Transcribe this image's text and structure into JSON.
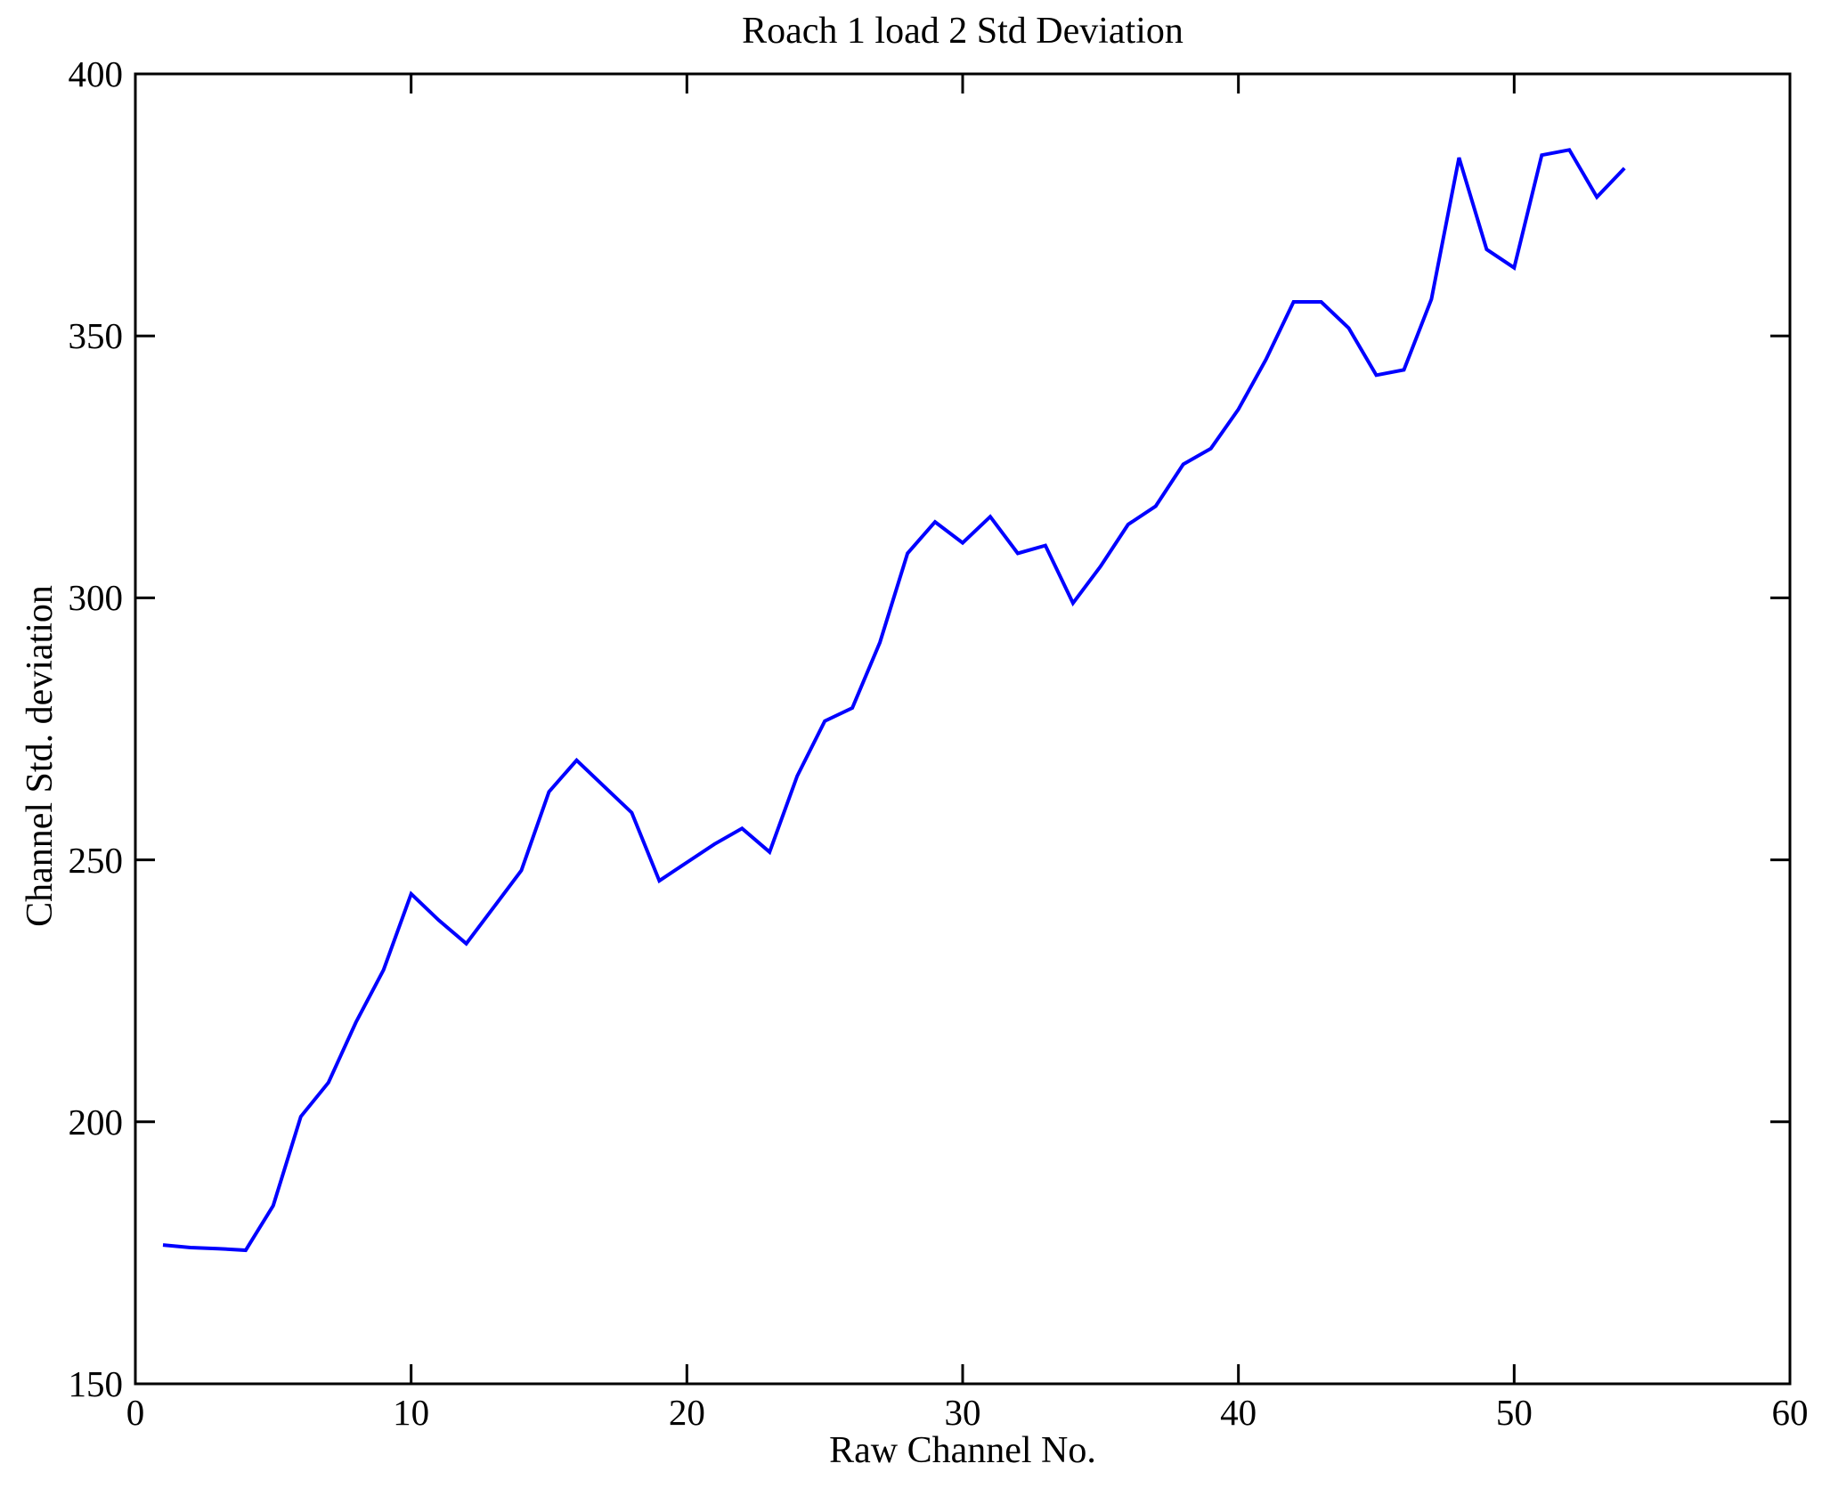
{
  "chart_data": {
    "type": "line",
    "title": "Roach 1 load 2 Std Deviation",
    "xlabel": "Raw Channel No.",
    "ylabel": "Channel Std. deviation",
    "x": [
      1,
      2,
      3,
      4,
      5,
      6,
      7,
      8,
      9,
      10,
      11,
      12,
      13,
      14,
      15,
      16,
      17,
      18,
      19,
      20,
      21,
      22,
      23,
      24,
      25,
      26,
      27,
      28,
      29,
      30,
      31,
      32,
      33,
      34,
      35,
      36,
      37,
      38,
      39,
      40,
      41,
      42,
      43,
      44,
      45,
      46,
      47,
      48,
      49,
      50,
      51,
      52,
      53,
      54
    ],
    "values": [
      176.5,
      176,
      175.8,
      175.5,
      184,
      201,
      207.5,
      219,
      229,
      243.5,
      238.5,
      234,
      241,
      248,
      263,
      269,
      264,
      259,
      246,
      249.5,
      253,
      256,
      251.5,
      266,
      276.5,
      279,
      291.5,
      308.5,
      314.5,
      310.5,
      315.5,
      308.5,
      310,
      299,
      306,
      314,
      317.5,
      325.5,
      328.5,
      336,
      345.5,
      356.5,
      356.5,
      351.5,
      342.5,
      343.5,
      357,
      384,
      366.5,
      363,
      384.5,
      385.5,
      376.5,
      382
    ],
    "xlim": [
      0,
      60
    ],
    "ylim": [
      150,
      400
    ],
    "xticks": [
      0,
      10,
      20,
      30,
      40,
      50,
      60
    ],
    "yticks": [
      150,
      200,
      250,
      300,
      350,
      400
    ],
    "line_color": "#0000FF",
    "axis_color": "#000000",
    "background_color": "#FFFFFF",
    "grid": false,
    "legend": null
  }
}
